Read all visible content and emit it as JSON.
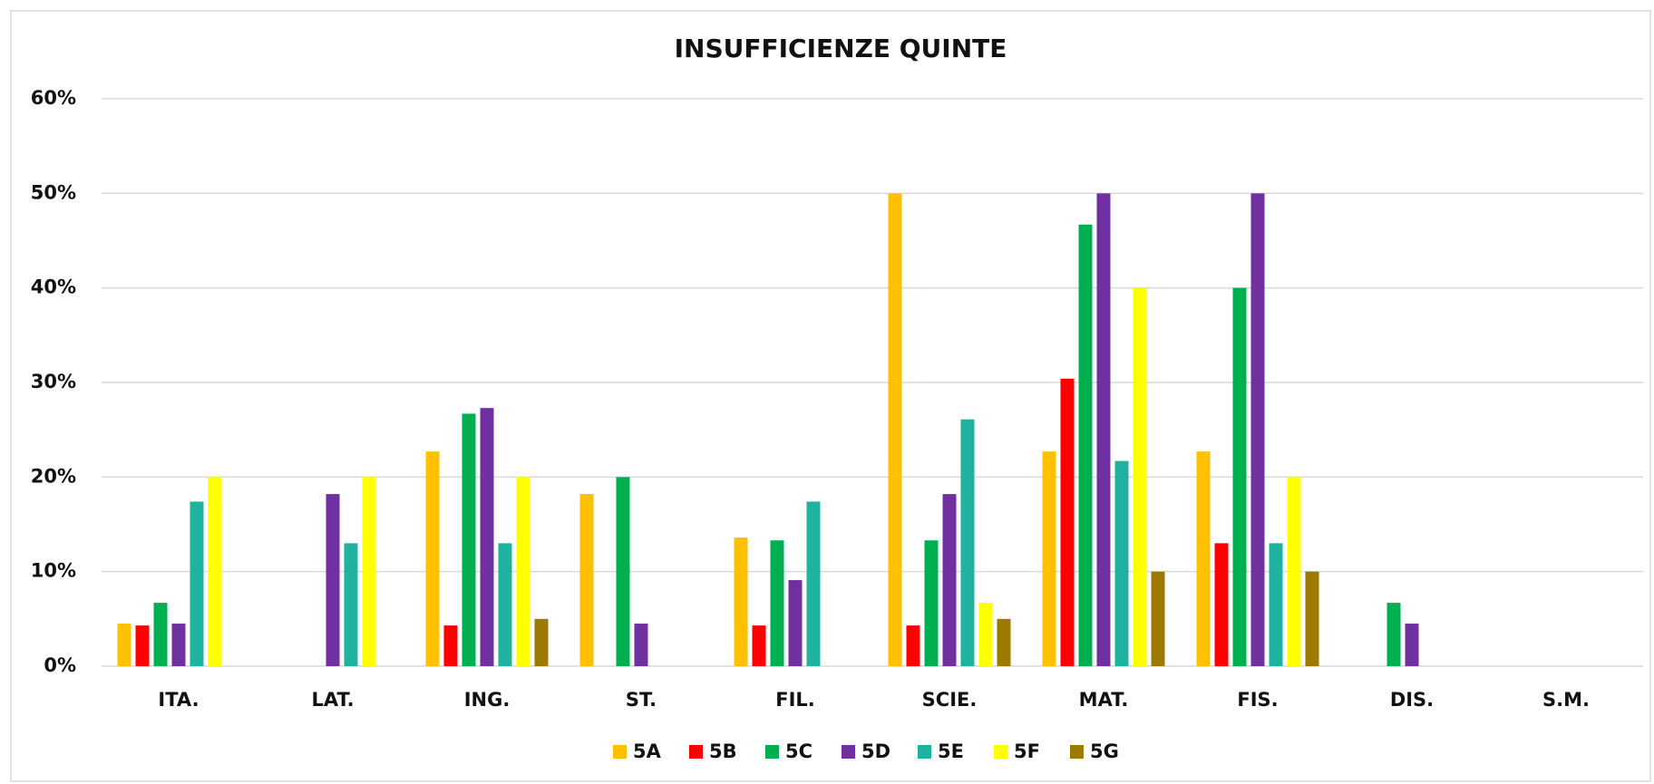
{
  "chart_data": {
    "type": "bar",
    "title": "INSUFFICIENZE QUINTE",
    "categories": [
      "ITA.",
      "LAT.",
      "ING.",
      "ST.",
      "FIL.",
      "SCIE.",
      "MAT.",
      "FIS.",
      "DIS.",
      "S.M."
    ],
    "series": [
      {
        "name": "5A",
        "color": "#ffc000",
        "values": [
          4.5,
          0,
          22.7,
          18.2,
          13.6,
          50,
          22.7,
          22.7,
          0,
          0
        ]
      },
      {
        "name": "5B",
        "color": "#ff0000",
        "values": [
          4.3,
          0,
          4.3,
          0,
          4.3,
          4.3,
          30.4,
          13,
          0,
          0
        ]
      },
      {
        "name": "5C",
        "color": "#00b050",
        "values": [
          6.7,
          0,
          26.7,
          20,
          13.3,
          13.3,
          46.7,
          40,
          6.7,
          0
        ]
      },
      {
        "name": "5D",
        "color": "#7030a0",
        "values": [
          4.5,
          18.2,
          27.3,
          4.5,
          9.1,
          18.2,
          50,
          50,
          4.5,
          0
        ]
      },
      {
        "name": "5E",
        "color": "#20b2a0",
        "values": [
          17.4,
          13,
          13,
          0,
          17.4,
          26.1,
          21.7,
          13,
          0,
          0
        ]
      },
      {
        "name": "5F",
        "color": "#ffff00",
        "values": [
          20,
          20,
          20,
          0,
          0,
          6.7,
          40,
          20,
          0,
          0
        ]
      },
      {
        "name": "5G",
        "color": "#9c7a00",
        "values": [
          0,
          0,
          5,
          0,
          0,
          5,
          10,
          10,
          0,
          0
        ]
      }
    ],
    "ylim": [
      0,
      60
    ],
    "yticks": [
      {
        "value": 0,
        "label": "0%"
      },
      {
        "value": 10,
        "label": "10%"
      },
      {
        "value": 20,
        "label": "20%"
      },
      {
        "value": 30,
        "label": "30%"
      },
      {
        "value": 40,
        "label": "40%"
      },
      {
        "value": 50,
        "label": "50%"
      },
      {
        "value": 60,
        "label": "60%"
      }
    ],
    "grid": true,
    "legend": "bottom"
  }
}
